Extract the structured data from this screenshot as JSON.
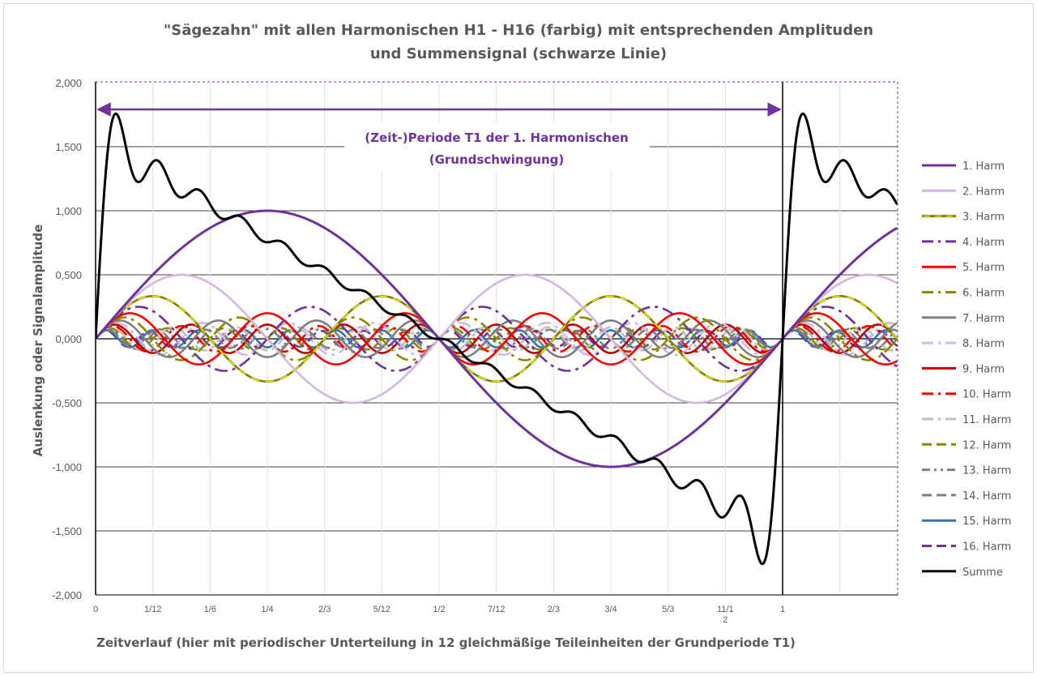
{
  "chart_data": {
    "type": "line",
    "title": "\"Sägezahn\" mit allen Harmonischen H1 - H16 (farbig) mit entsprechenden Amplituden",
    "subtitle": "und Summensignal (schwarze Linie)",
    "xlabel": "Zeitverlauf (hier mit periodischer Unterteilung in 12 gleichmäßige Teileinheiten der Grundperiode T1)",
    "ylabel": "Auslenkung oder Signalamplitude",
    "xlim": [
      0,
      1.1667
    ],
    "ylim": [
      -2.0,
      2.0
    ],
    "y_ticks": [
      "-2,000",
      "-1,500",
      "-1,000",
      "-0,500",
      "0,000",
      "0,500",
      "1,000",
      "1,500",
      "2,000"
    ],
    "x_ticks": [
      "0",
      "1/12",
      "1/6",
      "1/4",
      "2/3",
      "5/12",
      "1/2",
      "7/12",
      "2/3",
      "3/4",
      "5/3",
      "11/1",
      "1"
    ],
    "x_tick_second_line": {
      "index": 11,
      "text": "2"
    },
    "annotation": [
      "(Zeit-)Periode T1 der 1. Harmonischen",
      "(Grundschwingung)"
    ],
    "annotation_span": [
      0,
      1
    ],
    "grid": true,
    "legend_position": "right",
    "series_formula": "y = sin(2*pi*n*x)/n for harmonic n; Summe = sum of n=1..16",
    "series": [
      {
        "name": "1. Harm",
        "harmonic": 1,
        "color": "#7030a0",
        "style": "solid"
      },
      {
        "name": "2. Harm",
        "harmonic": 2,
        "color": "#d3b5e6",
        "style": "solid"
      },
      {
        "name": "3. Harm",
        "harmonic": 3,
        "color": "#7f7f00",
        "style": "solid",
        "overlay": "#f2f200"
      },
      {
        "name": "4. Harm",
        "harmonic": 4,
        "color": "#7030a0",
        "style": "dashdot"
      },
      {
        "name": "5. Harm",
        "harmonic": 5,
        "color": "#ff0000",
        "style": "solid"
      },
      {
        "name": "6. Harm",
        "harmonic": 6,
        "color": "#8a8a00",
        "style": "dashdot"
      },
      {
        "name": "7. Harm",
        "harmonic": 7,
        "color": "#7f7f7f",
        "style": "solid"
      },
      {
        "name": "8. Harm",
        "harmonic": 8,
        "color": "#d3b5e6",
        "style": "dashdot"
      },
      {
        "name": "9. Harm",
        "harmonic": 9,
        "color": "#c00000",
        "style": "solid"
      },
      {
        "name": "10. Harm",
        "harmonic": 10,
        "color": "#ff0000",
        "style": "dashdot"
      },
      {
        "name": "11. Harm",
        "harmonic": 11,
        "color": "#bfbfbf",
        "style": "dashdot"
      },
      {
        "name": "12. Harm",
        "harmonic": 12,
        "color": "#8a8a00",
        "style": "dash"
      },
      {
        "name": "13. Harm",
        "harmonic": 13,
        "color": "#7f7f7f",
        "style": "dashdotdot"
      },
      {
        "name": "14. Harm",
        "harmonic": 14,
        "color": "#7f7f7f",
        "style": "dash"
      },
      {
        "name": "15. Harm",
        "harmonic": 15,
        "color": "#2e75b6",
        "style": "solid"
      },
      {
        "name": "16. Harm",
        "harmonic": 16,
        "color": "#7030a0",
        "style": "dash"
      },
      {
        "name": "Summe",
        "harmonic": 0,
        "color": "#000000",
        "style": "solid"
      }
    ]
  }
}
